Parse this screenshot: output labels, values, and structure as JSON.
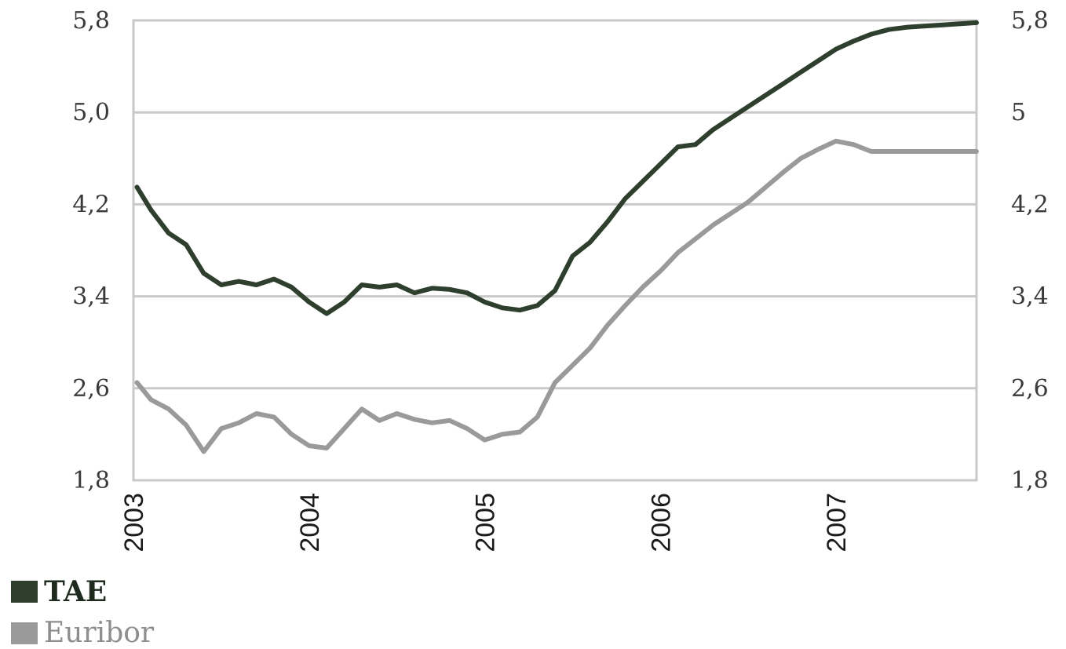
{
  "chart_data": {
    "type": "line",
    "title": "",
    "xlabel": "",
    "ylabel": "",
    "ylim": [
      1.8,
      5.8
    ],
    "y_ticks": [
      1.8,
      2.6,
      3.4,
      4.2,
      5.0,
      5.8
    ],
    "y_tick_labels_left": [
      "1,8",
      "2,6",
      "3,4",
      "4,2",
      "5,0",
      "5,8"
    ],
    "y_tick_labels_right": [
      "1,8",
      "2,6",
      "3,4",
      "4,2",
      "5",
      "5,8"
    ],
    "x_ticks": [
      2003,
      2004,
      2005,
      2006,
      2007
    ],
    "x_tick_labels": [
      "2003",
      "2004",
      "2005",
      "2006",
      "2007"
    ],
    "xlim": [
      2003,
      2007.8
    ],
    "grid": "horizontal",
    "legend_position": "bottom-left",
    "series": [
      {
        "name": "TAE",
        "color": "#2e3f2e",
        "x": [
          2003.02,
          2003.1,
          2003.2,
          2003.3,
          2003.4,
          2003.5,
          2003.6,
          2003.7,
          2003.8,
          2003.9,
          2004.0,
          2004.1,
          2004.2,
          2004.3,
          2004.4,
          2004.5,
          2004.6,
          2004.7,
          2004.8,
          2004.9,
          2005.0,
          2005.1,
          2005.2,
          2005.3,
          2005.4,
          2005.5,
          2005.6,
          2005.7,
          2005.8,
          2005.9,
          2006.0,
          2006.1,
          2006.2,
          2006.3,
          2006.4,
          2006.5,
          2006.6,
          2006.7,
          2006.8,
          2006.9,
          2007.0,
          2007.1,
          2007.2,
          2007.3,
          2007.4,
          2007.5,
          2007.6,
          2007.7,
          2007.8
        ],
        "values": [
          4.35,
          4.15,
          3.95,
          3.85,
          3.6,
          3.5,
          3.53,
          3.5,
          3.55,
          3.48,
          3.35,
          3.25,
          3.35,
          3.5,
          3.48,
          3.5,
          3.43,
          3.47,
          3.46,
          3.43,
          3.35,
          3.3,
          3.28,
          3.32,
          3.45,
          3.75,
          3.87,
          4.05,
          4.25,
          4.4,
          4.55,
          4.7,
          4.72,
          4.85,
          4.95,
          5.05,
          5.15,
          5.25,
          5.35,
          5.45,
          5.55,
          5.62,
          5.68,
          5.72,
          5.74,
          5.75,
          5.76,
          5.77,
          5.78
        ]
      },
      {
        "name": "Euribor",
        "color": "#9a9a9a",
        "x": [
          2003.02,
          2003.1,
          2003.2,
          2003.3,
          2003.4,
          2003.5,
          2003.6,
          2003.7,
          2003.8,
          2003.9,
          2004.0,
          2004.1,
          2004.2,
          2004.3,
          2004.4,
          2004.5,
          2004.6,
          2004.7,
          2004.8,
          2004.9,
          2005.0,
          2005.1,
          2005.2,
          2005.3,
          2005.4,
          2005.5,
          2005.6,
          2005.7,
          2005.8,
          2005.9,
          2006.0,
          2006.1,
          2006.2,
          2006.3,
          2006.4,
          2006.5,
          2006.6,
          2006.7,
          2006.8,
          2006.9,
          2007.0,
          2007.1,
          2007.2,
          2007.3,
          2007.4,
          2007.5,
          2007.6,
          2007.7,
          2007.8
        ],
        "values": [
          2.65,
          2.5,
          2.42,
          2.28,
          2.05,
          2.25,
          2.3,
          2.38,
          2.35,
          2.2,
          2.1,
          2.08,
          2.25,
          2.42,
          2.32,
          2.38,
          2.33,
          2.3,
          2.32,
          2.25,
          2.15,
          2.2,
          2.22,
          2.35,
          2.65,
          2.8,
          2.95,
          3.15,
          3.32,
          3.48,
          3.62,
          3.78,
          3.9,
          4.02,
          4.12,
          4.22,
          4.35,
          4.48,
          4.6,
          4.68,
          4.75,
          4.72,
          4.66,
          4.66,
          4.66,
          4.66,
          4.66,
          4.66,
          4.66
        ]
      }
    ]
  }
}
